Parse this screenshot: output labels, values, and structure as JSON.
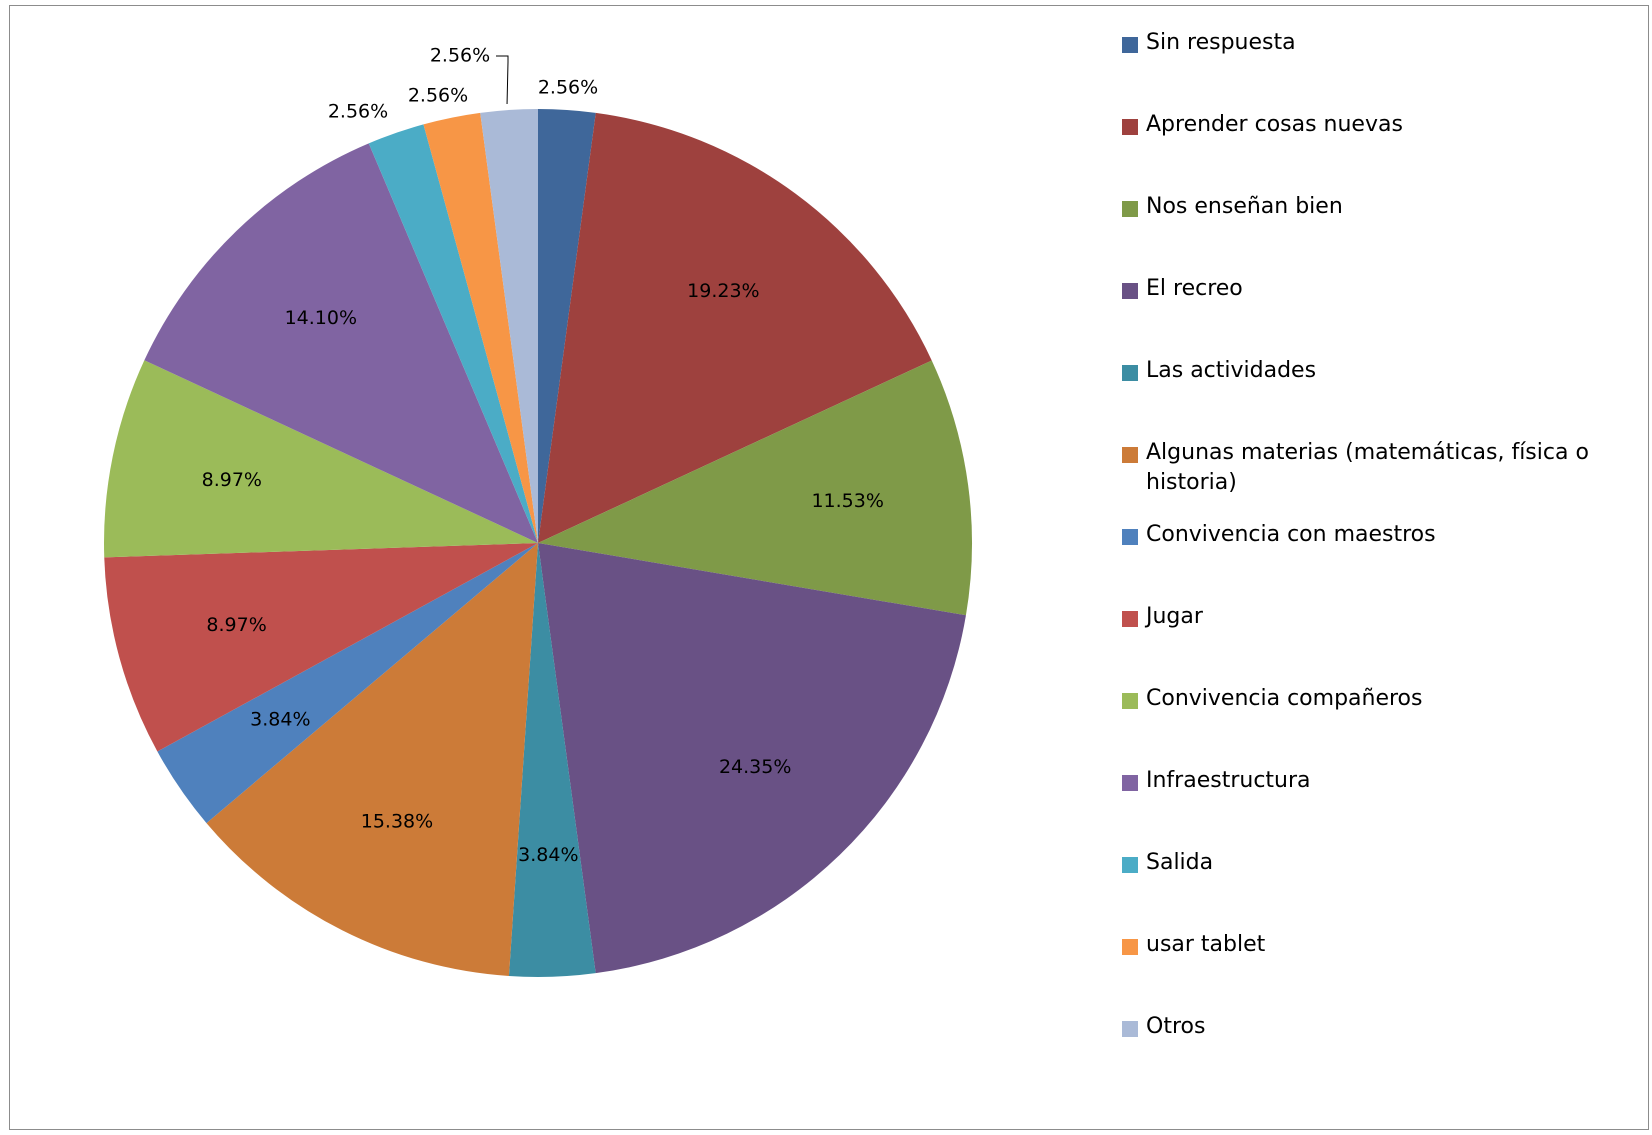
{
  "chart_data": {
    "type": "pie",
    "title": "",
    "legend_position": "right",
    "slices": [
      {
        "name": "Sin respuesta",
        "value": 2.56,
        "label": "2.56%",
        "color": "#3F679A"
      },
      {
        "name": "Aprender cosas nuevas",
        "value": 19.23,
        "label": "19.23%",
        "color": "#9E413E"
      },
      {
        "name": "Nos enseñan bien",
        "value": 11.53,
        "label": "11.53%",
        "color": "#7F9A48"
      },
      {
        "name": "El recreo",
        "value": 24.35,
        "label": "24.35%",
        "color": "#695185"
      },
      {
        "name": "Las actividades",
        "value": 3.84,
        "label": "3.84%",
        "color": "#3C8DA3"
      },
      {
        "name": "Algunas materias (matemáticas, física o historia)",
        "value": 15.38,
        "label": "15.38%",
        "color": "#CC7B38"
      },
      {
        "name": "Convivencia con maestros",
        "value": 3.84,
        "label": "3.84%",
        "color": "#4F81BD"
      },
      {
        "name": "Jugar",
        "value": 8.97,
        "label": "8.97%",
        "color": "#C0504D"
      },
      {
        "name": "Convivencia compañeros",
        "value": 8.97,
        "label": "8.97%",
        "color": "#9BBB59"
      },
      {
        "name": "Infraestructura",
        "value": 14.1,
        "label": "14.10%",
        "color": "#8064A2"
      },
      {
        "name": "Salida",
        "value": 2.56,
        "label": "2.56%",
        "color": "#4BACC6"
      },
      {
        "name": "usar tablet",
        "value": 2.56,
        "label": "2.56%",
        "color": "#F79646"
      },
      {
        "name": "Otros",
        "value": 2.56,
        "label": "2.56%",
        "color": "#AABAD7"
      }
    ]
  }
}
